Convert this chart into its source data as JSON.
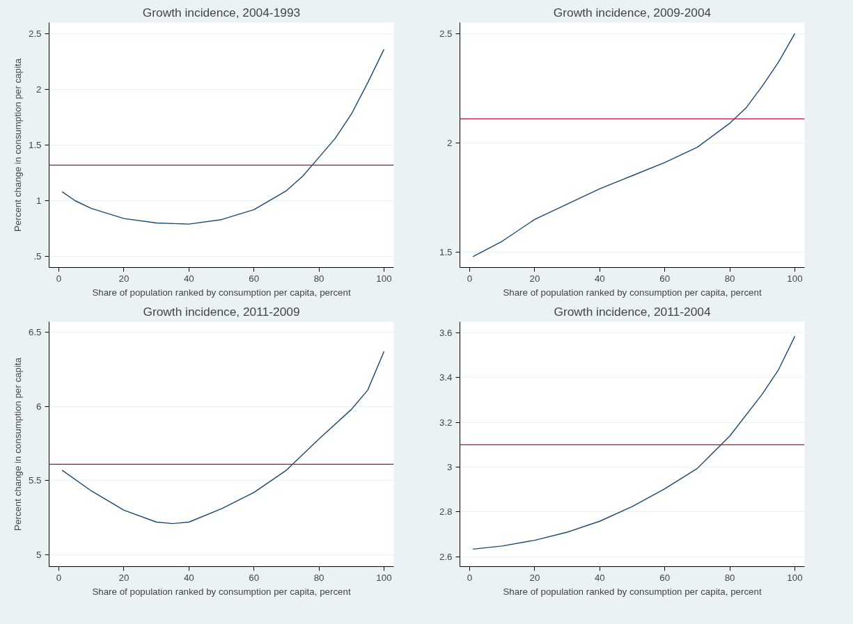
{
  "chart_data": [
    {
      "type": "line",
      "title": "Growth incidence, 2004-1993",
      "xlabel": "Share of population ranked by consumption per capita, percent",
      "ylabel": "Percent change in consumption per capita",
      "x": [
        1,
        5,
        10,
        20,
        30,
        40,
        50,
        60,
        70,
        75,
        80,
        85,
        90,
        95,
        100
      ],
      "series": [
        {
          "color": "#1a476f",
          "values": [
            1.08,
            1.0,
            0.93,
            0.84,
            0.8,
            0.79,
            0.83,
            0.92,
            1.09,
            1.22,
            1.39,
            1.56,
            1.78,
            2.06,
            2.36
          ]
        }
      ],
      "ref_lines": [
        {
          "axis": "y",
          "value": 1.32,
          "color": "#c10534"
        }
      ],
      "xlim": [
        -3,
        103
      ],
      "ylim": [
        0.4,
        2.6
      ],
      "xticks": [
        0,
        20,
        40,
        60,
        80,
        100
      ],
      "yticks": [
        {
          "value": 0.5,
          "label": ".5"
        },
        1,
        1.5,
        2,
        2.5
      ],
      "grid": "y"
    },
    {
      "type": "line",
      "title": "Growth incidence, 2009-2004",
      "xlabel": "Share of population ranked by consumption per capita, percent",
      "x": [
        1,
        10,
        20,
        30,
        40,
        50,
        60,
        70,
        80,
        85,
        90,
        95,
        100
      ],
      "series": [
        {
          "color": "#1a476f",
          "values": [
            1.48,
            1.55,
            1.65,
            1.72,
            1.79,
            1.85,
            1.91,
            1.98,
            2.09,
            2.16,
            2.26,
            2.37,
            2.5
          ]
        }
      ],
      "ref_lines": [
        {
          "axis": "y",
          "value": 2.11,
          "color": "#c10534"
        }
      ],
      "xlim": [
        -3,
        103
      ],
      "ylim": [
        1.43,
        2.55
      ],
      "xticks": [
        0,
        20,
        40,
        60,
        80,
        100
      ],
      "yticks": [
        1.5,
        2,
        2.5
      ],
      "grid": "y"
    },
    {
      "type": "line",
      "title": "Growth incidence, 2011-2009",
      "xlabel": "Share of population ranked by consumption per capita, percent",
      "ylabel": "Percent change in consumption per capita",
      "x": [
        1,
        10,
        20,
        30,
        35,
        40,
        50,
        60,
        70,
        80,
        90,
        95,
        100
      ],
      "series": [
        {
          "color": "#1a476f",
          "values": [
            5.57,
            5.43,
            5.3,
            5.22,
            5.21,
            5.22,
            5.31,
            5.42,
            5.57,
            5.78,
            5.98,
            6.11,
            6.37
          ]
        }
      ],
      "ref_lines": [
        {
          "axis": "y",
          "value": 5.61,
          "color": "#c10534"
        }
      ],
      "xlim": [
        -3,
        103
      ],
      "ylim": [
        4.92,
        6.57
      ],
      "xticks": [
        0,
        20,
        40,
        60,
        80,
        100
      ],
      "yticks": [
        5,
        5.5,
        6,
        6.5
      ],
      "grid": "y"
    },
    {
      "type": "line",
      "title": "Growth incidence, 2011-2004",
      "xlabel": "Share of population ranked by consumption per capita, percent",
      "x": [
        1,
        10,
        20,
        30,
        40,
        50,
        60,
        70,
        80,
        90,
        95,
        100
      ],
      "series": [
        {
          "color": "#1a476f",
          "values": [
            2.633,
            2.647,
            2.673,
            2.709,
            2.758,
            2.824,
            2.903,
            2.994,
            3.139,
            3.327,
            3.436,
            3.585
          ]
        }
      ],
      "ref_lines": [
        {
          "axis": "y",
          "value": 3.1,
          "color": "#c10534"
        }
      ],
      "xlim": [
        -3,
        103
      ],
      "ylim": [
        2.555,
        3.65
      ],
      "xticks": [
        0,
        20,
        40,
        60,
        80,
        100
      ],
      "yticks": [
        2.6,
        2.8,
        3,
        3.2,
        3.4,
        3.6
      ],
      "grid": "y"
    }
  ]
}
